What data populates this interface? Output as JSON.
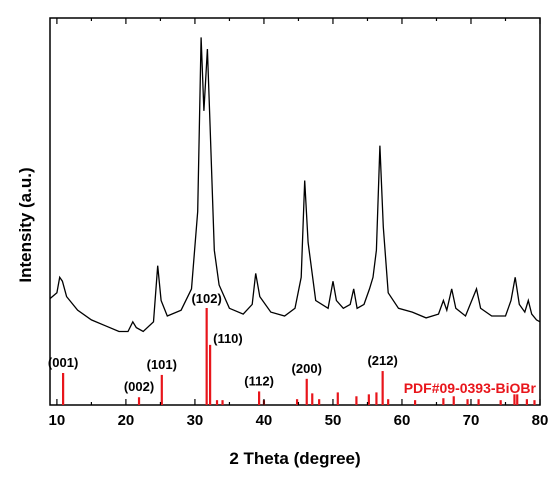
{
  "chart_data": {
    "type": "line",
    "xlabel": "2 Theta (degree)",
    "ylabel": "Intensity (a.u.)",
    "xlim": [
      9,
      80
    ],
    "xticks": [
      "10",
      "20",
      "30",
      "40",
      "50",
      "60",
      "70",
      "80"
    ],
    "grid": false,
    "legend": "none",
    "colors": {
      "pattern": "#000000",
      "reference": "#e8151b"
    },
    "series": [
      {
        "values": [
          [
            9.0,
            0.275
          ],
          [
            10.0,
            0.29
          ],
          [
            10.4,
            0.33
          ],
          [
            10.8,
            0.32
          ],
          [
            11.4,
            0.28
          ],
          [
            13,
            0.245
          ],
          [
            15,
            0.22
          ],
          [
            17,
            0.205
          ],
          [
            19,
            0.19
          ],
          [
            20.3,
            0.19
          ],
          [
            21.0,
            0.215
          ],
          [
            21.5,
            0.2
          ],
          [
            22.5,
            0.19
          ],
          [
            24.0,
            0.215
          ],
          [
            24.6,
            0.36
          ],
          [
            25.1,
            0.27
          ],
          [
            26,
            0.23
          ],
          [
            28,
            0.245
          ],
          [
            29.5,
            0.3
          ],
          [
            30.4,
            0.5
          ],
          [
            30.9,
            0.95
          ],
          [
            31.3,
            0.76
          ],
          [
            31.8,
            0.92
          ],
          [
            32.2,
            0.72
          ],
          [
            32.8,
            0.4
          ],
          [
            33.5,
            0.31
          ],
          [
            35,
            0.25
          ],
          [
            37,
            0.235
          ],
          [
            38.3,
            0.26
          ],
          [
            38.8,
            0.34
          ],
          [
            39.4,
            0.28
          ],
          [
            41,
            0.24
          ],
          [
            43,
            0.23
          ],
          [
            44.5,
            0.25
          ],
          [
            45.4,
            0.33
          ],
          [
            45.9,
            0.58
          ],
          [
            46.4,
            0.42
          ],
          [
            47.5,
            0.27
          ],
          [
            49.3,
            0.25
          ],
          [
            50.0,
            0.32
          ],
          [
            50.5,
            0.27
          ],
          [
            51.5,
            0.25
          ],
          [
            52.5,
            0.26
          ],
          [
            53.0,
            0.3
          ],
          [
            53.5,
            0.25
          ],
          [
            54.5,
            0.26
          ],
          [
            55.3,
            0.3
          ],
          [
            55.8,
            0.33
          ],
          [
            56.3,
            0.4
          ],
          [
            56.8,
            0.67
          ],
          [
            57.3,
            0.46
          ],
          [
            58.0,
            0.29
          ],
          [
            59.5,
            0.25
          ],
          [
            61.5,
            0.24
          ],
          [
            63.5,
            0.225
          ],
          [
            65.3,
            0.235
          ],
          [
            66.0,
            0.27
          ],
          [
            66.5,
            0.245
          ],
          [
            67.2,
            0.3
          ],
          [
            67.8,
            0.25
          ],
          [
            69.2,
            0.23
          ],
          [
            70.8,
            0.3
          ],
          [
            71.4,
            0.25
          ],
          [
            73,
            0.23
          ],
          [
            75,
            0.23
          ],
          [
            75.8,
            0.27
          ],
          [
            76.4,
            0.33
          ],
          [
            77.0,
            0.26
          ],
          [
            77.8,
            0.24
          ],
          [
            78.3,
            0.27
          ],
          [
            78.8,
            0.235
          ],
          [
            79.5,
            0.22
          ],
          [
            80,
            0.215
          ]
        ]
      }
    ],
    "reference": {
      "name": "PDF#09-0393-BiOBr",
      "sticks": [
        [
          10.9,
          0.33
        ],
        [
          21.9,
          0.08
        ],
        [
          25.2,
          0.31
        ],
        [
          31.7,
          1.0
        ],
        [
          32.2,
          0.62
        ],
        [
          33.2,
          0.05
        ],
        [
          34.0,
          0.05
        ],
        [
          39.3,
          0.14
        ],
        [
          40.0,
          0.05
        ],
        [
          44.8,
          0.06
        ],
        [
          46.2,
          0.27
        ],
        [
          47.0,
          0.12
        ],
        [
          48.0,
          0.06
        ],
        [
          50.7,
          0.13
        ],
        [
          53.4,
          0.09
        ],
        [
          55.2,
          0.11
        ],
        [
          56.3,
          0.13
        ],
        [
          57.2,
          0.35
        ],
        [
          58.0,
          0.06
        ],
        [
          61.9,
          0.05
        ],
        [
          66.0,
          0.07
        ],
        [
          67.5,
          0.09
        ],
        [
          69.5,
          0.06
        ],
        [
          71.1,
          0.06
        ],
        [
          74.3,
          0.05
        ],
        [
          76.3,
          0.11
        ],
        [
          76.7,
          0.11
        ],
        [
          78.1,
          0.06
        ],
        [
          79.2,
          0.05
        ]
      ]
    },
    "annotations": [
      {
        "text": "(001)",
        "x": 10.9
      },
      {
        "text": "(002)",
        "x": 21.9
      },
      {
        "text": "(101)",
        "x": 25.2
      },
      {
        "text": "(102)",
        "x": 31.7
      },
      {
        "text": "(110)",
        "x": 32.2
      },
      {
        "text": "(112)",
        "x": 39.3
      },
      {
        "text": "(200)",
        "x": 46.2
      },
      {
        "text": "(212)",
        "x": 57.2
      }
    ]
  }
}
